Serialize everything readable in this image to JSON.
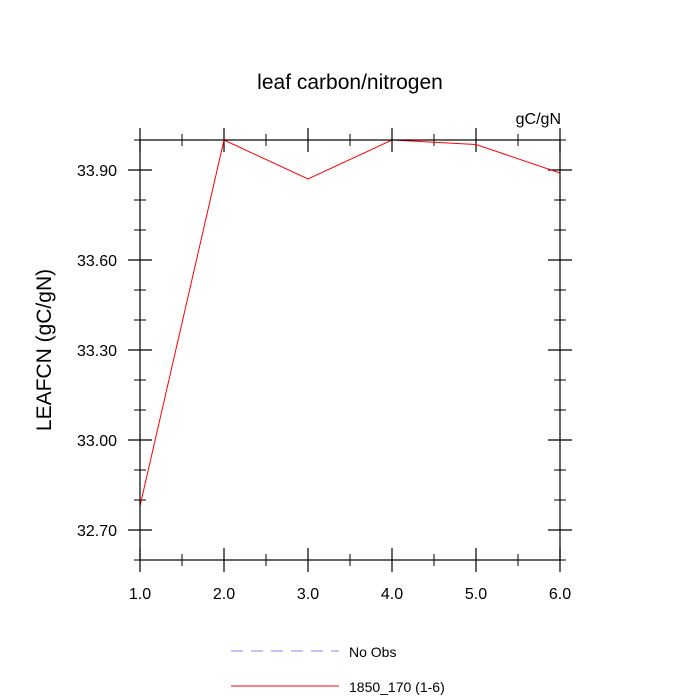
{
  "chart_data": {
    "type": "line",
    "title": "leaf carbon/nitrogen",
    "units_label": "gC/gN",
    "ylabel": "LEAFCN  (gC/gN)",
    "xlabel": "",
    "xlim": [
      1.0,
      6.0
    ],
    "ylim": [
      32.6,
      34.0
    ],
    "x_ticks": [
      1.0,
      2.0,
      3.0,
      4.0,
      5.0,
      6.0
    ],
    "x_tick_labels": [
      "1.0",
      "2.0",
      "3.0",
      "4.0",
      "5.0",
      "6.0"
    ],
    "y_ticks": [
      32.7,
      33.0,
      33.3,
      33.6,
      33.9
    ],
    "y_tick_labels": [
      "32.70",
      "33.00",
      "33.30",
      "33.60",
      "33.90"
    ],
    "y_minor_step": 0.1,
    "x_minor_step": 0.5,
    "grid": false,
    "legend_position": "bottom-center",
    "series": [
      {
        "name": "1850_170 (1-6)",
        "color": "#ff0000",
        "style": "solid",
        "x": [
          1.0,
          2.0,
          3.0,
          4.0,
          5.0,
          6.0
        ],
        "y": [
          32.78,
          34.0,
          33.87,
          34.0,
          33.985,
          33.89
        ]
      }
    ],
    "legend": [
      {
        "label": "No Obs",
        "color": "#8888ff",
        "style": "dashed"
      },
      {
        "label": "1850_170 (1-6)",
        "color": "#ff0000",
        "style": "solid"
      }
    ]
  }
}
